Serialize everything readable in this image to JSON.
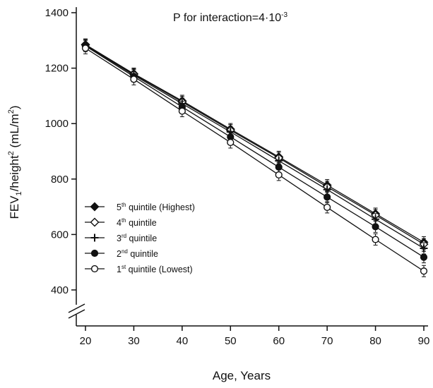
{
  "chart_data": {
    "type": "line",
    "title": "",
    "annotation": {
      "prefix": "P for interaction=4·10",
      "exponent": "-3"
    },
    "xlabel": "Age, Years",
    "ylabel": {
      "part1": "FEV",
      "sub": "1",
      "part2": "/height",
      "sup": "2",
      "part3": " (mL/m",
      "sup2": "2",
      "part4": ")"
    },
    "x": [
      20,
      30,
      40,
      50,
      60,
      70,
      80,
      90
    ],
    "x_ticks": [
      "20",
      "30",
      "40",
      "50",
      "60",
      "70",
      "80",
      "90"
    ],
    "y_ticks": [
      400,
      600,
      800,
      1000,
      1200,
      1400
    ],
    "y_tick_labels": [
      "400",
      "600",
      "800",
      "1000",
      "1200",
      "1400"
    ],
    "xlim": [
      18,
      92
    ],
    "ylim": [
      350,
      1420
    ],
    "axis_break": true,
    "grid": false,
    "legend_position": "lower-left",
    "series": [
      {
        "name": "5th quintile (Highest)",
        "label_base": "5",
        "label_sup": "th",
        "label_rest": " quintile (Highest)",
        "marker": "filled-diamond",
        "values": [
          1285,
          1180,
          1082,
          980,
          880,
          778,
          675,
          572
        ]
      },
      {
        "name": "4th quintile",
        "label_base": "4",
        "label_sup": "th",
        "label_rest": " quintile",
        "marker": "open-diamond",
        "values": [
          1285,
          1178,
          1078,
          976,
          876,
          772,
          670,
          565
        ]
      },
      {
        "name": "3rd quintile",
        "label_base": "3",
        "label_sup": "rd",
        "label_rest": " quintile",
        "marker": "plus",
        "values": [
          1282,
          1175,
          1072,
          970,
          866,
          762,
          655,
          550
        ]
      },
      {
        "name": "2nd quintile",
        "label_base": "2",
        "label_sup": "nd",
        "label_rest": " quintile",
        "marker": "filled-circle",
        "values": [
          1280,
          1170,
          1060,
          952,
          843,
          735,
          628,
          518
        ]
      },
      {
        "name": "1st quintile (Lowest)",
        "label_base": "1",
        "label_sup": "st",
        "label_rest": " quintile (Lowest)",
        "marker": "open-circle",
        "values": [
          1272,
          1160,
          1045,
          932,
          815,
          698,
          582,
          468
        ]
      }
    ],
    "colors": {
      "ink": "#111111",
      "background": "#ffffff"
    }
  }
}
